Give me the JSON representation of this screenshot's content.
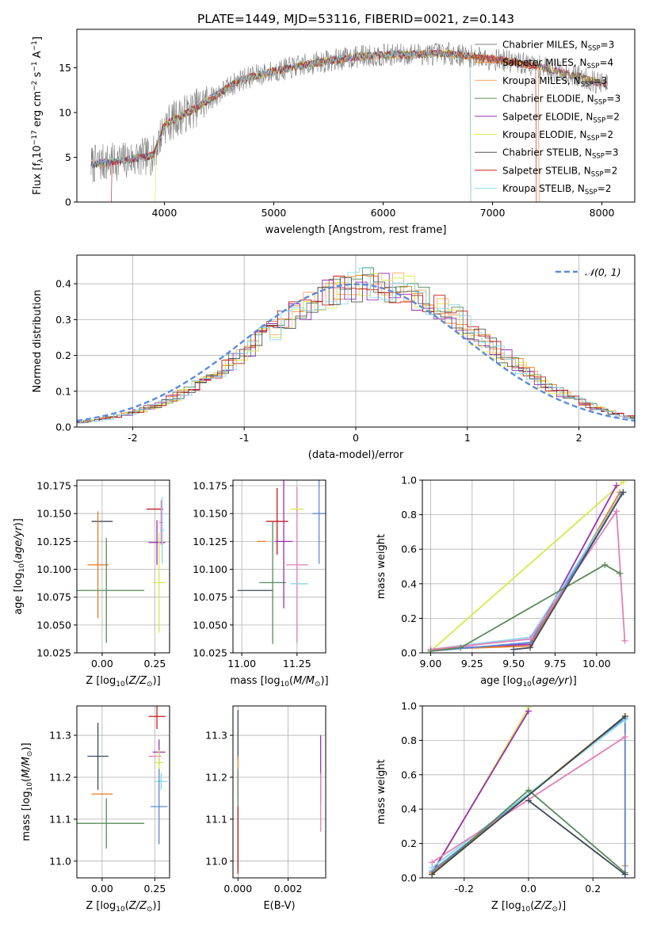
{
  "title": "PLATE=1449, MJD=53116, FIBERID=0021, z=0.143",
  "colors": {
    "model_palette": [
      "#7f7f7f",
      "#e97c20",
      "#ffa95e",
      "#5a8a5a",
      "#9a2fb8",
      "#d9e84a",
      "#555555",
      "#c01c1c",
      "#86d7ea"
    ],
    "gaussian": "#5b8bdc",
    "panel_series": [
      "#3e4a5a",
      "#e97c20",
      "#5a8a5a",
      "#c01c1c",
      "#9a2fb8",
      "#e47fb8",
      "#d9e84a",
      "#86d7ea",
      "#5b8bdc",
      "#444444"
    ]
  },
  "chart_data": [
    {
      "id": "spectrum",
      "type": "line",
      "xlabel": "wavelength [Angstrom, rest frame]",
      "ylabel": "Flux [f_λ 10^-17 erg cm^-2 s^-1 A^-1]",
      "xlim": [
        3200,
        8300
      ],
      "ylim": [
        0,
        19.3
      ],
      "xticks": [
        4000,
        5000,
        6000,
        7000,
        8000
      ],
      "yticks": [
        0,
        5,
        10,
        15
      ],
      "legend_position": "upper-right",
      "continuum_knots": {
        "x": [
          3330,
          3600,
          3900,
          4000,
          4300,
          4700,
          5000,
          5400,
          5800,
          6200,
          6600,
          7000,
          7400,
          7800,
          8050
        ],
        "y": [
          4.2,
          4.6,
          5.2,
          8.6,
          10.6,
          13.7,
          14.6,
          15.6,
          16.3,
          16.5,
          16.6,
          16.0,
          15.2,
          14.0,
          13.0
        ]
      },
      "series": [
        {
          "name": "Chabrier MILES, N_SSP=3",
          "color": "#7f7f7f"
        },
        {
          "name": "Salpeter MILES, N_SSP=4",
          "color": "#e97c20"
        },
        {
          "name": "Kroupa MILES, N_SSP=3",
          "color": "#ffa95e"
        },
        {
          "name": "Chabrier ELODIE, N_SSP=3",
          "color": "#5a8a5a"
        },
        {
          "name": "Salpeter ELODIE, N_SSP=2",
          "color": "#9a2fb8"
        },
        {
          "name": "Kroupa ELODIE, N_SSP=2",
          "color": "#d9e84a"
        },
        {
          "name": "Chabrier STELIB, N_SSP=3",
          "color": "#555555"
        },
        {
          "name": "Salpeter STELIB, N_SSP=2",
          "color": "#c01c1c"
        },
        {
          "name": "Kroupa STELIB, N_SSP=2",
          "color": "#86d7ea"
        }
      ]
    },
    {
      "id": "residuals",
      "type": "line",
      "xlabel": "(data-model)/error",
      "ylabel": "Normed distribution",
      "xlim": [
        -2.5,
        2.5
      ],
      "ylim": [
        0,
        0.48
      ],
      "xticks": [
        -2,
        -1,
        0,
        1,
        2
      ],
      "yticks": [
        0.0,
        0.1,
        0.2,
        0.3,
        0.4
      ],
      "grid": true,
      "legend": "𝒩(0, 1)",
      "legend_position": "upper-right",
      "bin_width": 0.1
    },
    {
      "id": "age_vs_Z",
      "type": "scatter",
      "xlabel": "Z [log10(Z/Z⊙)]",
      "ylabel": "age [log10(age/yr)]",
      "xlim": [
        -0.12,
        0.32
      ],
      "ylim": [
        10.025,
        10.18
      ],
      "xticks": [
        0.0,
        0.25
      ],
      "yticks": [
        10.025,
        10.05,
        10.075,
        10.1,
        10.125,
        10.15,
        10.175
      ],
      "grid": true,
      "points": [
        {
          "x": 0.0,
          "y": 10.143,
          "ex": 0.05,
          "ey": 0.0
        },
        {
          "x": -0.02,
          "y": 10.104,
          "ex": 0.05,
          "ey": 0.048
        },
        {
          "x": 0.02,
          "y": 10.081,
          "ex": 0.18,
          "ey": 0.047
        },
        {
          "x": 0.25,
          "y": 10.154,
          "ex": 0.04,
          "ey": 0.0
        },
        {
          "x": 0.26,
          "y": 10.124,
          "ex": 0.04,
          "ey": 0.02
        },
        {
          "x": 0.28,
          "y": 10.142,
          "ex": 0.01,
          "ey": 0.02
        },
        {
          "x": 0.27,
          "y": 10.088,
          "ex": 0.03,
          "ey": 0.045
        },
        {
          "x": 0.285,
          "y": 10.135,
          "ex": 0.01,
          "ey": 0.03
        }
      ]
    },
    {
      "id": "age_vs_mass",
      "type": "scatter",
      "xlabel": "mass [log10(M/M⊙)]",
      "ylim": [
        10.025,
        10.18
      ],
      "xlim": [
        10.96,
        11.38
      ],
      "xticks": [
        11.0,
        11.25
      ],
      "yticks": [
        10.025,
        10.05,
        10.075,
        10.1,
        10.125,
        10.15,
        10.175
      ],
      "grid": true,
      "points": [
        {
          "x": 11.06,
          "y": 10.081,
          "ex": 0.08,
          "ey": 0.0
        },
        {
          "x": 11.09,
          "y": 10.125,
          "ex": 0.02,
          "ey": 0.0
        },
        {
          "x": 11.14,
          "y": 10.088,
          "ex": 0.06,
          "ey": 0.055
        },
        {
          "x": 11.16,
          "y": 10.143,
          "ex": 0.05,
          "ey": 0.03
        },
        {
          "x": 11.19,
          "y": 10.125,
          "ex": 0.04,
          "ey": 0.06
        },
        {
          "x": 11.25,
          "y": 10.104,
          "ex": 0.05,
          "ey": 0.07
        },
        {
          "x": 11.25,
          "y": 10.154,
          "ex": 0.03,
          "ey": 0.0
        },
        {
          "x": 11.26,
          "y": 10.087,
          "ex": 0.04,
          "ey": 0.0
        },
        {
          "x": 11.35,
          "y": 10.15,
          "ex": 0.03,
          "ey": 0.045
        }
      ]
    },
    {
      "id": "massweight_vs_age",
      "type": "line",
      "xlabel": "age [log10(age/yr)]",
      "ylabel": "mass weight",
      "xlim": [
        8.95,
        10.23
      ],
      "ylim": [
        0,
        1
      ],
      "xticks": [
        9.0,
        9.25,
        9.5,
        9.75,
        10.0
      ],
      "yticks": [
        0.0,
        0.2,
        0.4,
        0.6,
        0.8,
        1.0
      ],
      "grid": true,
      "series": [
        {
          "x": [
            9.0,
            10.16
          ],
          "y": [
            0.01,
            0.99
          ]
        },
        {
          "x": [
            9.0,
            9.6,
            10.12
          ],
          "y": [
            0.02,
            0.05,
            0.97
          ]
        },
        {
          "x": [
            9.0,
            9.6,
            10.14
          ],
          "y": [
            0.02,
            0.04,
            0.93
          ]
        },
        {
          "x": [
            9.0,
            9.6,
            10.15
          ],
          "y": [
            0.01,
            0.06,
            0.92
          ]
        },
        {
          "x": [
            9.0,
            9.6,
            10.16
          ],
          "y": [
            0.02,
            0.09,
            0.93
          ]
        },
        {
          "x": [
            9.0,
            9.6,
            10.12,
            10.17
          ],
          "y": [
            0.02,
            0.08,
            0.82,
            0.07
          ]
        },
        {
          "x": [
            9.0,
            9.18,
            10.05,
            10.14
          ],
          "y": [
            0.01,
            0.03,
            0.51,
            0.46
          ]
        },
        {
          "x": [
            9.5,
            9.6,
            10.16
          ],
          "y": [
            0.02,
            0.03,
            0.93
          ]
        }
      ]
    },
    {
      "id": "mass_vs_Z",
      "type": "scatter",
      "xlabel": "Z [log10(Z/Z⊙)]",
      "ylabel": "mass [log10(M/M⊙)]",
      "xlim": [
        -0.12,
        0.32
      ],
      "ylim": [
        10.96,
        11.37
      ],
      "xticks": [
        0.0,
        0.25
      ],
      "yticks": [
        11.0,
        11.1,
        11.2,
        11.3
      ],
      "grid": true,
      "points": [
        {
          "x": -0.02,
          "y": 11.25,
          "ex": 0.05,
          "ey": 0.08
        },
        {
          "x": 0.0,
          "y": 11.16,
          "ex": 0.05,
          "ey": 0.0
        },
        {
          "x": 0.02,
          "y": 11.09,
          "ex": 0.18,
          "ey": 0.06
        },
        {
          "x": 0.26,
          "y": 11.345,
          "ex": 0.04,
          "ey": 0.03
        },
        {
          "x": 0.27,
          "y": 11.26,
          "ex": 0.03,
          "ey": 0.03
        },
        {
          "x": 0.25,
          "y": 11.25,
          "ex": 0.03,
          "ey": 0.0
        },
        {
          "x": 0.27,
          "y": 11.235,
          "ex": 0.02,
          "ey": 0.03
        },
        {
          "x": 0.28,
          "y": 11.19,
          "ex": 0.03,
          "ey": 0.02
        },
        {
          "x": 0.27,
          "y": 11.13,
          "ex": 0.04,
          "ey": 0.09
        }
      ]
    },
    {
      "id": "mass_vs_EBV",
      "type": "scatter",
      "xlabel": "E(B-V)",
      "xlim": [
        -0.0002,
        0.0035
      ],
      "ylim": [
        10.96,
        11.37
      ],
      "xticks": [
        0.0,
        0.002
      ],
      "yticks": [
        11.0,
        11.1,
        11.2,
        11.3
      ],
      "grid": true,
      "points": [
        {
          "x": 0.0,
          "y": 11.3,
          "ex": 0.0,
          "ey": 0.06
        },
        {
          "x": 0.0,
          "y": 11.2,
          "ex": 0.0,
          "ey": 0.05
        },
        {
          "x": 0.0,
          "y": 11.1,
          "ex": 0.0,
          "ey": 0.12
        },
        {
          "x": 0.0,
          "y": 11.05,
          "ex": 0.0,
          "ey": 0.08
        },
        {
          "x": 0.0033,
          "y": 11.22,
          "ex": 0.0,
          "ey": 0.08
        },
        {
          "x": 0.0033,
          "y": 11.14,
          "ex": 0.0,
          "ey": 0.07
        }
      ]
    },
    {
      "id": "massweight_vs_Z",
      "type": "line",
      "xlabel": "Z [log10(Z/Z⊙)]",
      "ylabel": "mass weight",
      "xlim": [
        -0.33,
        0.33
      ],
      "ylim": [
        0,
        1
      ],
      "xticks": [
        -0.2,
        0.0,
        0.2
      ],
      "yticks": [
        0.0,
        0.2,
        0.4,
        0.6,
        0.8,
        1.0
      ],
      "grid": true,
      "series": [
        {
          "x": [
            -0.3,
            0.0
          ],
          "y": [
            0.02,
            0.99
          ]
        },
        {
          "x": [
            -0.3,
            0.0
          ],
          "y": [
            0.03,
            0.97
          ]
        },
        {
          "x": [
            -0.3,
            0.3,
            0.3
          ],
          "y": [
            0.03,
            0.94,
            0.07
          ]
        },
        {
          "x": [
            -0.3,
            0.3,
            0.3
          ],
          "y": [
            0.04,
            0.93,
            0.02
          ]
        },
        {
          "x": [
            -0.3,
            0.3
          ],
          "y": [
            0.06,
            0.92
          ]
        },
        {
          "x": [
            -0.3,
            0.3
          ],
          "y": [
            0.09,
            0.82
          ]
        },
        {
          "x": [
            -0.3,
            0.0,
            0.3
          ],
          "y": [
            0.02,
            0.51,
            0.03
          ]
        },
        {
          "x": [
            0.0,
            0.3
          ],
          "y": [
            0.45,
            0.02
          ]
        },
        {
          "x": [
            -0.3,
            0.3
          ],
          "y": [
            0.02,
            0.94
          ]
        }
      ]
    }
  ]
}
